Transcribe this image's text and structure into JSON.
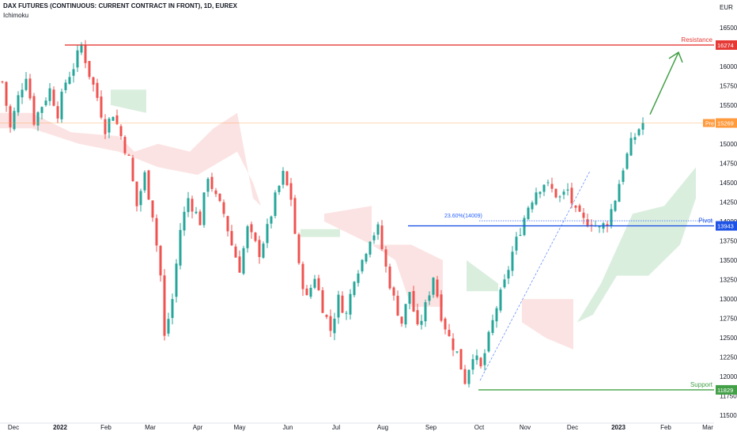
{
  "header": {
    "title": "DAX FUTURES (CONTINUOUS: CURRENT CONTRACT IN FRONT), 1D, EUREX",
    "indicator": "Ichimoku"
  },
  "chart_data": {
    "type": "candlestick",
    "currency": "EUR",
    "ylim": [
      11400,
      16600
    ],
    "y_ticks": [
      "16500",
      "16250",
      "16000",
      "15750",
      "15500",
      "15250",
      "15000",
      "14750",
      "14500",
      "14250",
      "14000",
      "13750",
      "13500",
      "13250",
      "13000",
      "12750",
      "12500",
      "12250",
      "12000",
      "11750",
      "11500"
    ],
    "x_ticks": [
      "Dec",
      "2022",
      "Feb",
      "Mar",
      "Apr",
      "May",
      "Jun",
      "Jul",
      "Aug",
      "Sep",
      "Oct",
      "Nov",
      "Dec",
      "2023",
      "Feb",
      "Mar"
    ],
    "price_path": [
      [
        0,
        15800
      ],
      [
        2,
        15200
      ],
      [
        4,
        15600
      ],
      [
        6,
        15900
      ],
      [
        8,
        15300
      ],
      [
        10,
        15500
      ],
      [
        12,
        15700
      ],
      [
        14,
        15400
      ],
      [
        16,
        15800
      ],
      [
        18,
        16000
      ],
      [
        20,
        16274
      ],
      [
        22,
        15900
      ],
      [
        24,
        15600
      ],
      [
        26,
        15200
      ],
      [
        28,
        15400
      ],
      [
        30,
        15100
      ],
      [
        32,
        14800
      ],
      [
        34,
        14200
      ],
      [
        36,
        14600
      ],
      [
        38,
        14100
      ],
      [
        40,
        13300
      ],
      [
        41,
        12500
      ],
      [
        43,
        13000
      ],
      [
        45,
        13900
      ],
      [
        47,
        14300
      ],
      [
        50,
        14000
      ],
      [
        52,
        14600
      ],
      [
        54,
        14300
      ],
      [
        56,
        14100
      ],
      [
        58,
        13700
      ],
      [
        60,
        13400
      ],
      [
        62,
        13900
      ],
      [
        65,
        13600
      ],
      [
        67,
        13900
      ],
      [
        69,
        14300
      ],
      [
        71,
        14600
      ],
      [
        73,
        14300
      ],
      [
        75,
        13400
      ],
      [
        77,
        13000
      ],
      [
        79,
        13300
      ],
      [
        81,
        12900
      ],
      [
        83,
        12600
      ],
      [
        85,
        13000
      ],
      [
        87,
        12800
      ],
      [
        89,
        13300
      ],
      [
        91,
        13500
      ],
      [
        93,
        13800
      ],
      [
        95,
        13900
      ],
      [
        97,
        13400
      ],
      [
        99,
        13000
      ],
      [
        101,
        12700
      ],
      [
        103,
        13100
      ],
      [
        105,
        12600
      ],
      [
        107,
        12900
      ],
      [
        109,
        13300
      ],
      [
        111,
        12800
      ],
      [
        113,
        12500
      ],
      [
        115,
        12300
      ],
      [
        117,
        11950
      ],
      [
        119,
        12300
      ],
      [
        121,
        12100
      ],
      [
        123,
        12500
      ],
      [
        125,
        12900
      ],
      [
        127,
        13200
      ],
      [
        129,
        13600
      ],
      [
        131,
        13900
      ],
      [
        133,
        14200
      ],
      [
        135,
        14400
      ],
      [
        137,
        14500
      ],
      [
        139,
        14400
      ],
      [
        141,
        14300
      ],
      [
        143,
        14400
      ],
      [
        145,
        14100
      ],
      [
        147,
        14000
      ],
      [
        149,
        14000
      ],
      [
        151,
        13900
      ],
      [
        153,
        14000
      ],
      [
        155,
        14300
      ],
      [
        157,
        14700
      ],
      [
        159,
        15000
      ],
      [
        161,
        15200
      ],
      [
        162,
        15269
      ]
    ],
    "levels": [
      {
        "name": "Resistance",
        "value": 16274,
        "price_label": "16274",
        "color": "#e53935"
      },
      {
        "name": "Pivot",
        "value": 13943,
        "price_label": "13943",
        "color": "#1e53e5"
      },
      {
        "name": "Support",
        "value": 11829,
        "price_label": "11829",
        "color": "#43a047"
      }
    ],
    "prev_close": {
      "label": "Pre",
      "price_label": "15269",
      "value": 15269,
      "color": "#ff9a3d"
    },
    "fibonacci": {
      "label": "23.60%(14009)",
      "value": 14009,
      "color": "#2962ff"
    },
    "colors": {
      "up": "#26a69a",
      "down": "#ef5350",
      "cloud_bull": "#cde8d3",
      "cloud_bear": "#fbd9d9",
      "arrow": "#43a047"
    }
  }
}
